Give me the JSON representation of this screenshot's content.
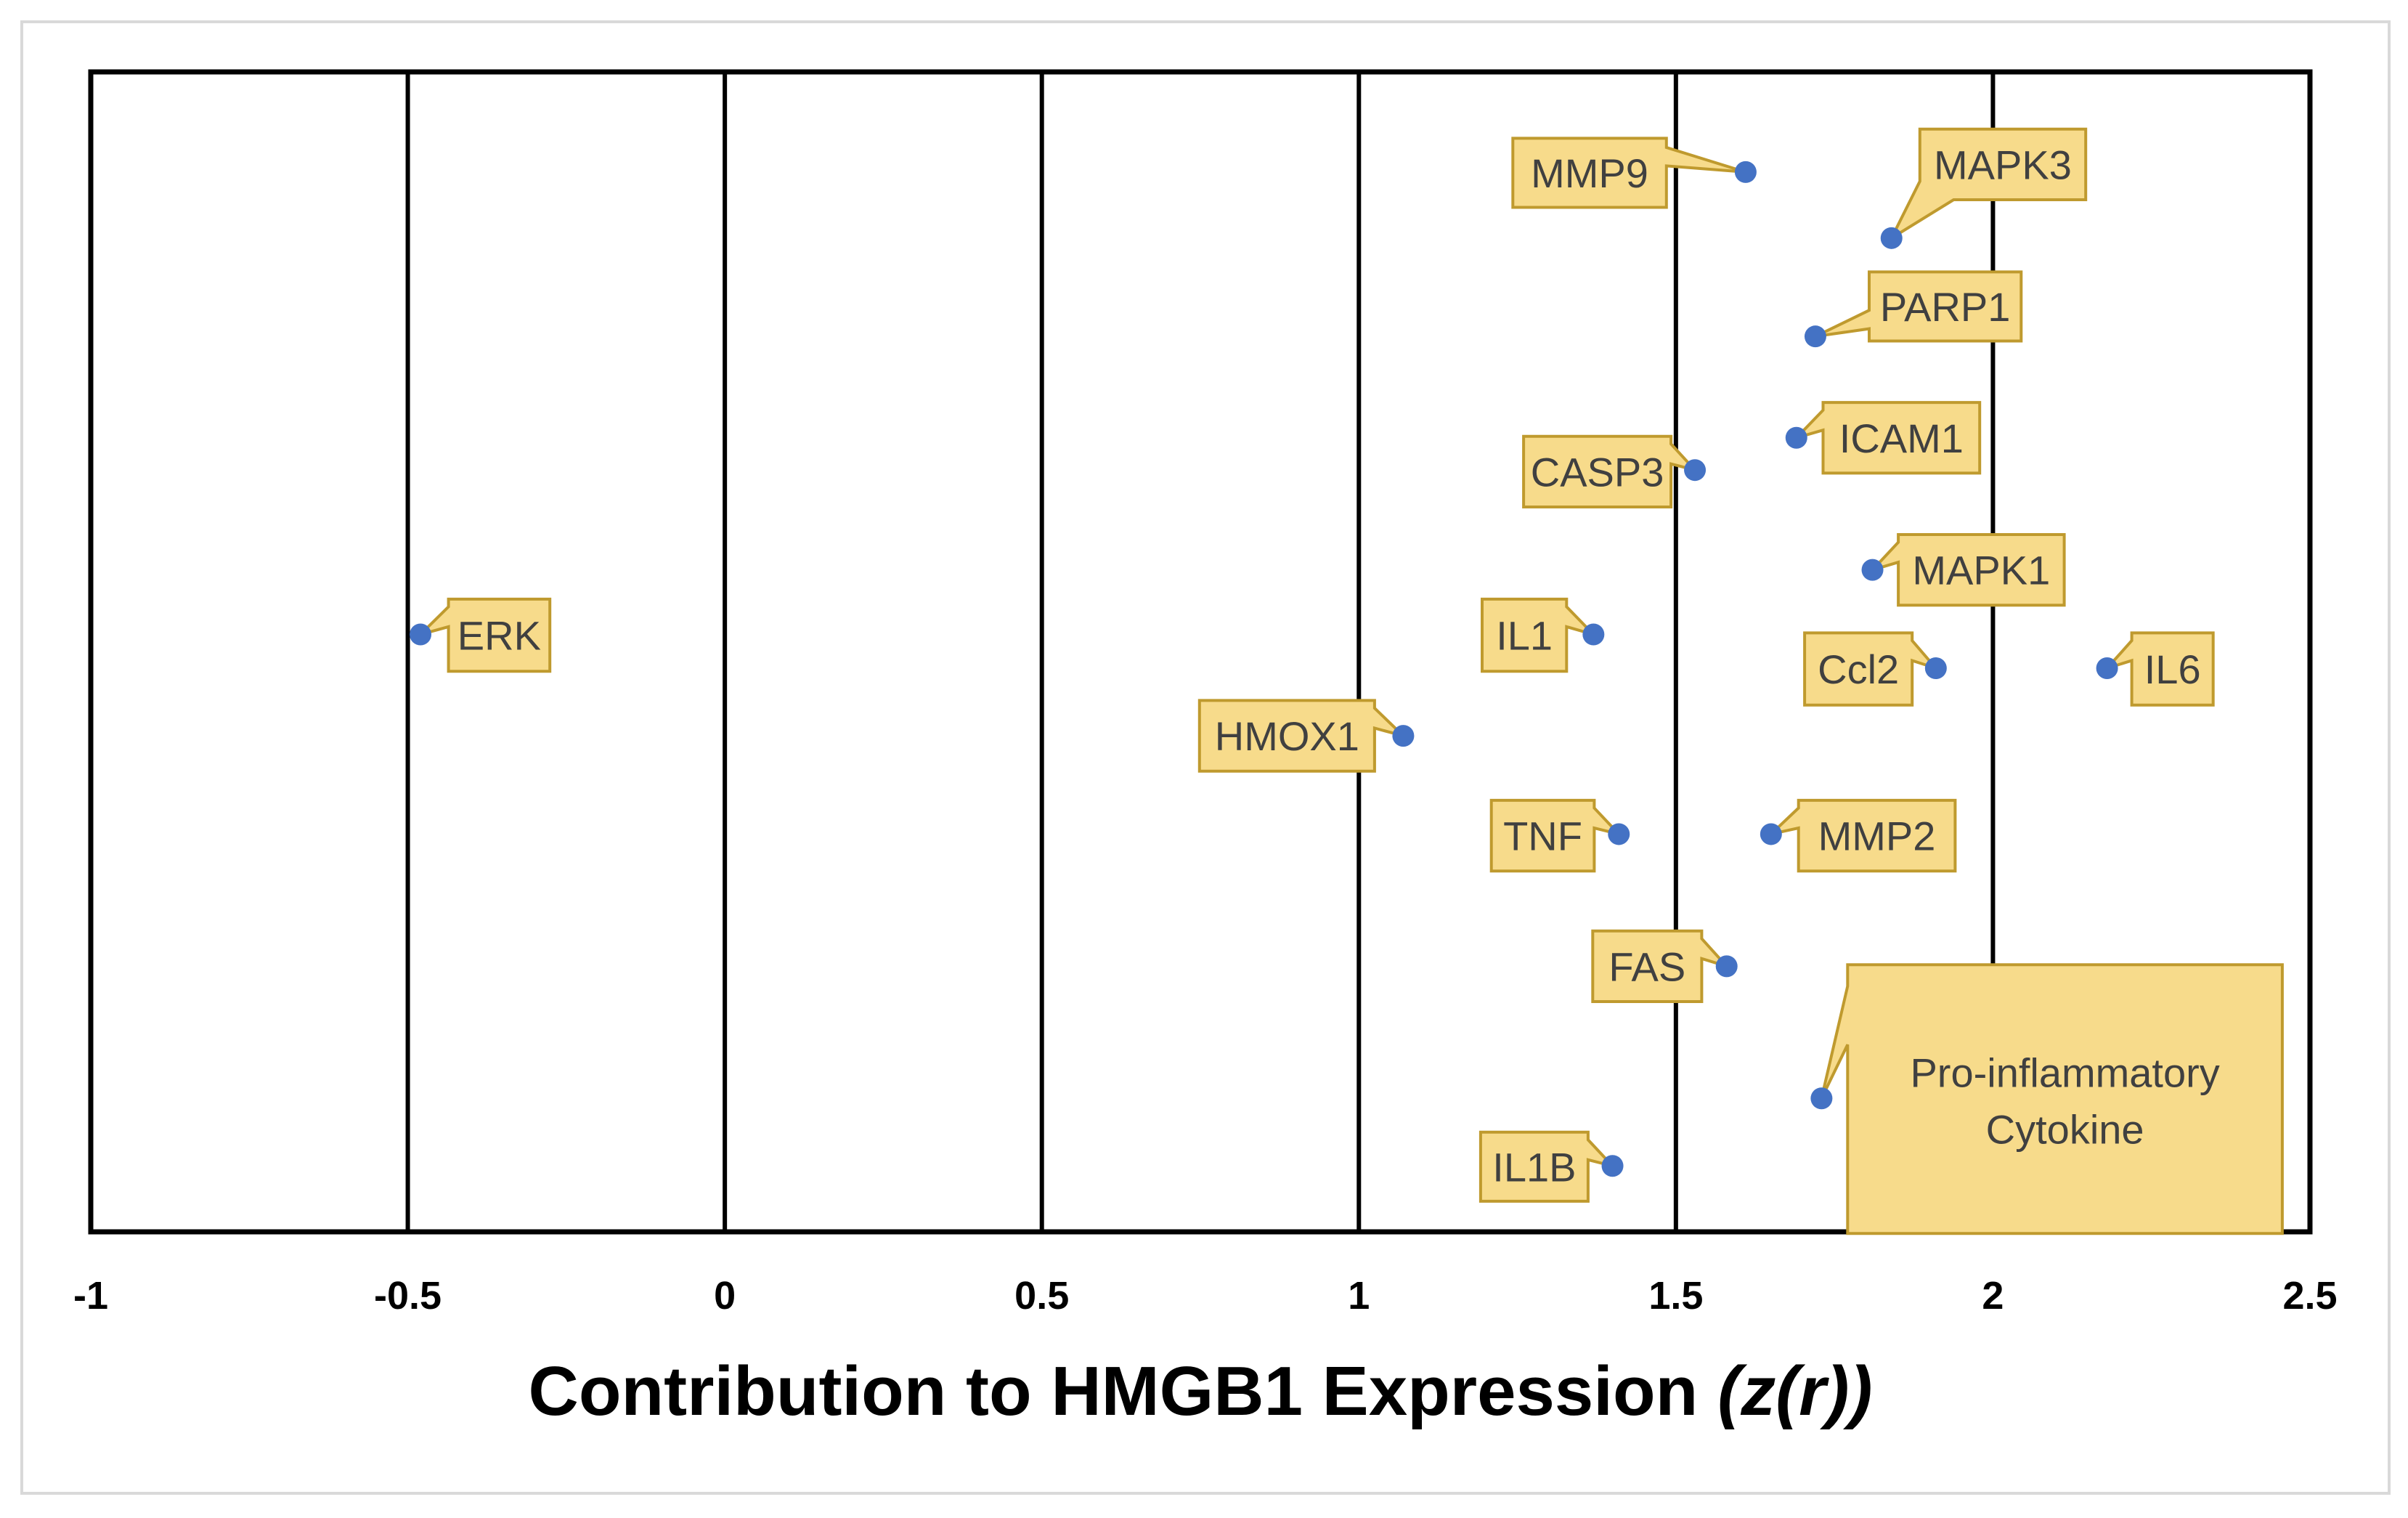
{
  "chart_data": {
    "type": "scatter",
    "xlabel": "Contribution to HMGB1 Expression",
    "xlabel_unit": "(z(r))",
    "xlim": [
      -1,
      2.5
    ],
    "x_ticks": [
      -1,
      -0.5,
      0,
      0.5,
      1,
      1.5,
      2,
      2.5
    ],
    "grid": "vertical",
    "points": [
      {
        "label": "MMP9",
        "x": 1.61
      },
      {
        "label": "MAPK3",
        "x": 1.84
      },
      {
        "label": "PARP1",
        "x": 1.72
      },
      {
        "label": "ICAM1",
        "x": 1.69
      },
      {
        "label": "CASP3",
        "x": 1.53
      },
      {
        "label": "MAPK1",
        "x": 1.81
      },
      {
        "label": "ERK",
        "x": -0.48
      },
      {
        "label": "IL1",
        "x": 1.37
      },
      {
        "label": "Ccl2",
        "x": 1.91
      },
      {
        "label": "IL6",
        "x": 2.18
      },
      {
        "label": "HMOX1",
        "x": 1.07
      },
      {
        "label": "TNF",
        "x": 1.41
      },
      {
        "label": "MMP2",
        "x": 1.65
      },
      {
        "label": "FAS",
        "x": 1.58
      },
      {
        "label": "IL1B",
        "x": 1.4
      }
    ],
    "legend": {
      "lines": [
        "Pro-inflammatory",
        "Cytokine"
      ],
      "placement": "bottom-right"
    }
  },
  "colors": {
    "point": "#4472C4",
    "callout_fill": "#F7DB8B",
    "callout_border": "#BF9A2E",
    "label_text": "#404040",
    "grid": "#000000",
    "frame": "#D9D9D9"
  }
}
